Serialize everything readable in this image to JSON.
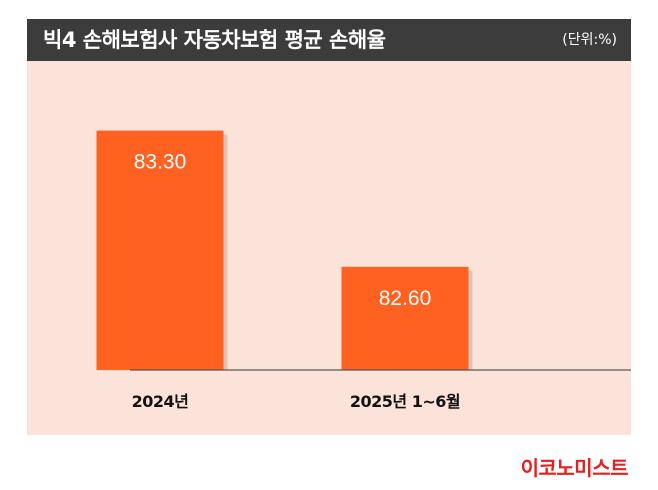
{
  "header": {
    "title": "빅4 손해보험사 자동차보험 평균 손해율",
    "unit": "(단위:%)"
  },
  "brand": "이코노미스트",
  "chart_data": {
    "type": "bar",
    "title": "빅4 손해보험사 자동차보험 평균 손해율",
    "unit": "%",
    "categories": [
      "2024년",
      "2025년 1~6월"
    ],
    "values": [
      83.3,
      82.6
    ],
    "value_labels": [
      "83.30",
      "82.60"
    ],
    "ylim": [
      82.07,
      83.38
    ],
    "grid": false,
    "legend": "none"
  },
  "colors": {
    "header_bg": "#3c3c3c",
    "panel_bg": "#fce3d9",
    "bar": "#ff6121",
    "bar_shadow": "#c9a898",
    "baseline": "#555555",
    "brand": "#e6201e"
  }
}
